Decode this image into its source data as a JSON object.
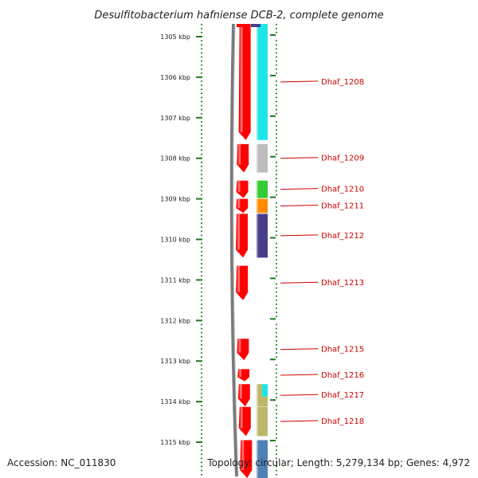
{
  "title": "Desulfitobacterium hafniense DCB-2, complete genome",
  "footer": {
    "accession": "Accession: NC_011830",
    "topology": "Topology: circular; Length: 5,279,134 bp; Genes: 4,972"
  },
  "scale": {
    "unit": "kbp",
    "ticks": [
      "1305 kbp",
      "1306 kbp",
      "1307 kbp",
      "1308 kbp",
      "1309 kbp",
      "1310 kbp",
      "1311 kbp",
      "1312 kbp",
      "1313 kbp",
      "1314 kbp",
      "1315 kbp"
    ]
  },
  "genes": [
    {
      "label": "Dhaf_1208",
      "start_kbp": 1304.65,
      "end_kbp": 1307.55,
      "strand": "-",
      "cog_color": "#1fe6e6"
    },
    {
      "label": "Dhaf_1209",
      "start_kbp": 1307.65,
      "end_kbp": 1308.35,
      "strand": "-",
      "cog_color": "#bdbdbd"
    },
    {
      "label": "Dhaf_1210",
      "start_kbp": 1308.55,
      "end_kbp": 1308.98,
      "strand": "-",
      "cog_color": "#33cc33"
    },
    {
      "label": "Dhaf_1211",
      "start_kbp": 1309.0,
      "end_kbp": 1309.35,
      "strand": "-",
      "cog_color": "#ff8c00"
    },
    {
      "label": "Dhaf_1212",
      "start_kbp": 1309.37,
      "end_kbp": 1310.45,
      "strand": "-",
      "cog_color": "#483d8b"
    },
    {
      "label": "Dhaf_1213",
      "start_kbp": 1310.65,
      "end_kbp": 1311.5,
      "strand": "-",
      "cog_color": ""
    },
    {
      "label": "Dhaf_1215",
      "start_kbp": 1312.45,
      "end_kbp": 1312.98,
      "strand": "-",
      "cog_color": ""
    },
    {
      "label": "Dhaf_1216",
      "start_kbp": 1313.2,
      "end_kbp": 1313.5,
      "strand": "-",
      "cog_color": ""
    },
    {
      "label": "Dhaf_1217",
      "start_kbp": 1313.57,
      "end_kbp": 1314.12,
      "strand": "-",
      "cog_color": "#bdb76b",
      "cog_color_2": "#1fe6e6"
    },
    {
      "label": "Dhaf_1218",
      "start_kbp": 1314.13,
      "end_kbp": 1314.85,
      "strand": "-",
      "cog_color": "#bdb76b"
    },
    {
      "label": "",
      "start_kbp": 1314.95,
      "end_kbp": 1315.95,
      "strand": "-",
      "cog_color": "#4f81b5"
    }
  ],
  "top_partial_gene": {
    "start_kbp": 1304.6,
    "end_kbp": 1304.72,
    "cog_color": "#483d8b"
  },
  "colors": {
    "gene_arrow": "#ff0000",
    "backbone": "#808080",
    "tick": "#1a7a1a",
    "label": "#cc0000"
  }
}
